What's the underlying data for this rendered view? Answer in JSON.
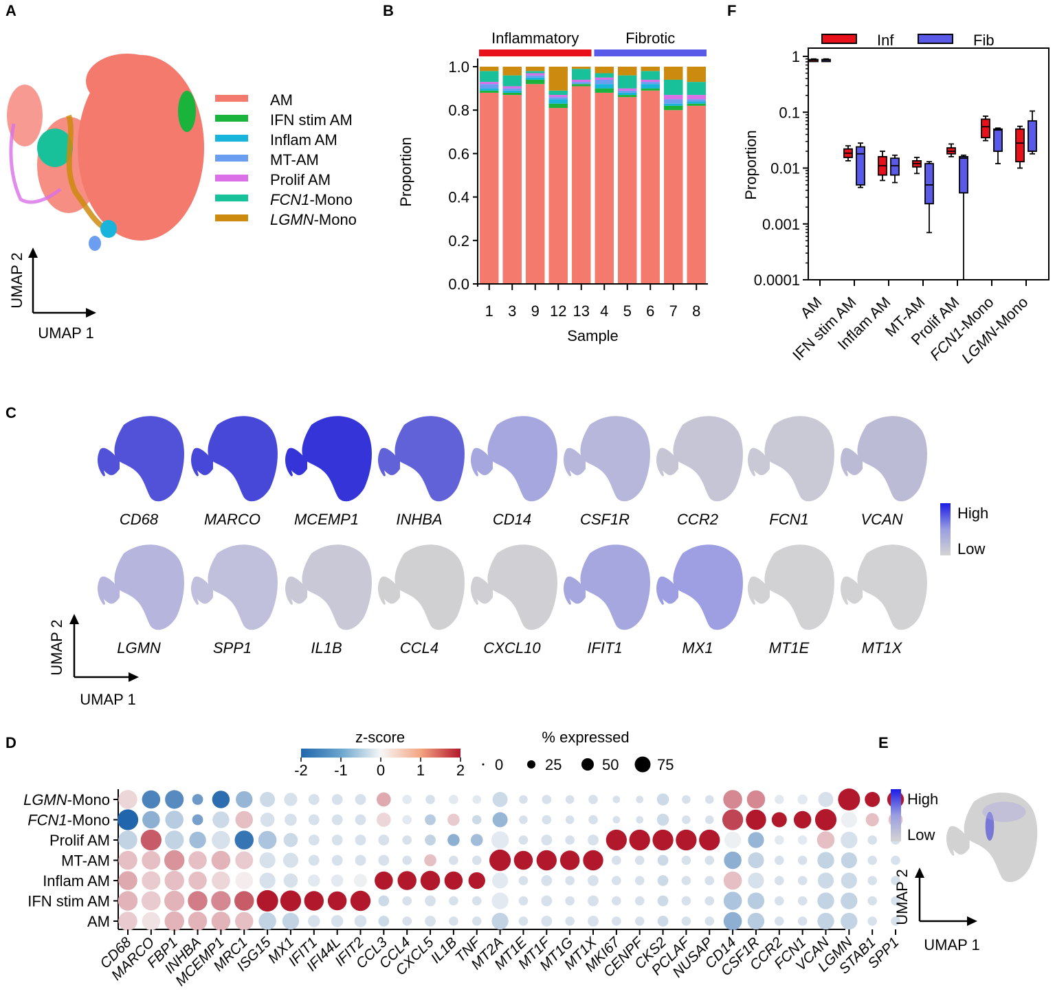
{
  "colors": {
    "AM": "#f47a6e",
    "IFN stim AM": "#1ab33c",
    "Inflam AM": "#18b4dc",
    "MT-AM": "#6b9ef0",
    "Prolif AM": "#da6fe8",
    "FCN1-Mono": "#18c19a",
    "LGMN-Mono": "#cc8b0e",
    "inf": "#e8111b",
    "fib": "#5a5ae8",
    "high": "#1c1ce6",
    "low": "#d4d4d4"
  },
  "panel_labels": {
    "a": "A",
    "b": "B",
    "c": "C",
    "d": "D",
    "e": "E",
    "f": "F"
  },
  "umap": {
    "axis1": "UMAP 1",
    "axis2": "UMAP 2"
  },
  "panelA": {
    "legend": [
      {
        "label": "AM",
        "key": "AM"
      },
      {
        "label": "IFN stim AM",
        "key": "IFN stim AM"
      },
      {
        "label": "Inflam AM",
        "key": "Inflam AM"
      },
      {
        "label": "MT-AM",
        "key": "MT-AM"
      },
      {
        "label": "Prolif AM",
        "key": "Prolif AM"
      },
      {
        "italic": "FCN1",
        "rest": "-Mono",
        "key": "FCN1-Mono"
      },
      {
        "italic": "LGMN",
        "rest": "-Mono",
        "key": "LGMN-Mono"
      }
    ]
  },
  "chart_data": [
    {
      "panel": "B",
      "type": "bar",
      "stacked": true,
      "xlabel": "Sample",
      "ylabel": "Proportion",
      "ylim": [
        0,
        1
      ],
      "yticks": [
        "0.0",
        "0.2",
        "0.4",
        "0.6",
        "0.8",
        "1.0"
      ],
      "groups": [
        {
          "label": "Inflammatory",
          "color": "#e8111b",
          "from": 0,
          "to": 4
        },
        {
          "label": "Fibrotic",
          "color": "#5a5ae8",
          "from": 5,
          "to": 9
        }
      ],
      "categories": [
        "1",
        "3",
        "9",
        "12",
        "13",
        "4",
        "5",
        "6",
        "7",
        "8"
      ],
      "series": [
        {
          "name": "AM",
          "values": [
            0.88,
            0.87,
            0.92,
            0.81,
            0.91,
            0.88,
            0.86,
            0.89,
            0.8,
            0.82
          ]
        },
        {
          "name": "IFN stim AM",
          "values": [
            0.01,
            0.01,
            0.02,
            0.02,
            0.01,
            0.02,
            0.01,
            0.01,
            0.02,
            0.01
          ]
        },
        {
          "name": "Inflam AM",
          "values": [
            0.01,
            0.01,
            0.01,
            0.02,
            0.0,
            0.02,
            0.01,
            0.02,
            0.01,
            0.01
          ]
        },
        {
          "name": "MT-AM",
          "values": [
            0.02,
            0.01,
            0.01,
            0.01,
            0.01,
            0.02,
            0.01,
            0.01,
            0.02,
            0.01
          ]
        },
        {
          "name": "Prolif AM",
          "values": [
            0.01,
            0.01,
            0.01,
            0.01,
            0.01,
            0.01,
            0.01,
            0.01,
            0.02,
            0.02
          ]
        },
        {
          "name": "FCN1-Mono",
          "values": [
            0.05,
            0.05,
            0.01,
            0.02,
            0.05,
            0.02,
            0.06,
            0.04,
            0.07,
            0.06
          ]
        },
        {
          "name": "LGMN-Mono",
          "values": [
            0.02,
            0.04,
            0.02,
            0.11,
            0.01,
            0.03,
            0.04,
            0.02,
            0.06,
            0.07
          ]
        }
      ]
    },
    {
      "panel": "F",
      "type": "box",
      "yscale": "log",
      "ylabel": "Proportion",
      "ylim": [
        0.0001,
        1
      ],
      "yticks": [
        "0.0001",
        "0.001",
        "0.01",
        "0.1",
        "1"
      ],
      "legend": [
        {
          "label": "Inf",
          "color": "#e8111b"
        },
        {
          "label": "Fib",
          "color": "#5a5ae8"
        }
      ],
      "categories": [
        {
          "label": "AM"
        },
        {
          "label": "IFN stim AM"
        },
        {
          "label": "Inflam AM"
        },
        {
          "label": "MT-AM"
        },
        {
          "label": "Prolif AM"
        },
        {
          "italic": "FCN1",
          "rest": "-Mono"
        },
        {
          "italic": "LGMN",
          "rest": "-Mono"
        }
      ],
      "boxes": [
        {
          "group": "Inf",
          "cat": 0,
          "min": 0.82,
          "q1": 0.84,
          "median": 0.86,
          "q3": 0.88,
          "max": 0.9
        },
        {
          "group": "Fib",
          "cat": 0,
          "min": 0.82,
          "q1": 0.84,
          "median": 0.86,
          "q3": 0.88,
          "max": 0.9
        },
        {
          "group": "Inf",
          "cat": 1,
          "min": 0.0135,
          "q1": 0.0155,
          "median": 0.0185,
          "q3": 0.022,
          "max": 0.025
        },
        {
          "group": "Fib",
          "cat": 1,
          "min": 0.0045,
          "q1": 0.005,
          "median": 0.018,
          "q3": 0.024,
          "max": 0.028
        },
        {
          "group": "Inf",
          "cat": 2,
          "min": 0.006,
          "q1": 0.0075,
          "median": 0.011,
          "q3": 0.016,
          "max": 0.02
        },
        {
          "group": "Fib",
          "cat": 2,
          "min": 0.0055,
          "q1": 0.0075,
          "median": 0.011,
          "q3": 0.015,
          "max": 0.017
        },
        {
          "group": "Inf",
          "cat": 3,
          "min": 0.008,
          "q1": 0.0105,
          "median": 0.012,
          "q3": 0.0135,
          "max": 0.0155
        },
        {
          "group": "Fib",
          "cat": 3,
          "min": 0.0007,
          "q1": 0.0023,
          "median": 0.005,
          "q3": 0.012,
          "max": 0.013
        },
        {
          "group": "Inf",
          "cat": 4,
          "min": 0.016,
          "q1": 0.018,
          "median": 0.02,
          "q3": 0.023,
          "max": 0.027
        },
        {
          "group": "Fib",
          "cat": 4,
          "min": 0.0001,
          "q1": 0.0036,
          "median": 0.015,
          "q3": 0.016,
          "max": 0.017
        },
        {
          "group": "Inf",
          "cat": 5,
          "min": 0.031,
          "q1": 0.035,
          "median": 0.055,
          "q3": 0.075,
          "max": 0.085
        },
        {
          "group": "Fib",
          "cat": 5,
          "min": 0.012,
          "q1": 0.02,
          "median": 0.048,
          "q3": 0.05,
          "max": 0.052
        },
        {
          "group": "Inf",
          "cat": 6,
          "min": 0.01,
          "q1": 0.013,
          "median": 0.028,
          "q3": 0.05,
          "max": 0.056
        },
        {
          "group": "Fib",
          "cat": 6,
          "min": 0.018,
          "q1": 0.02,
          "median": 0.02,
          "q3": 0.07,
          "max": 0.105
        }
      ]
    },
    {
      "panel": "D",
      "type": "dotplot",
      "legend": {
        "colorbar_title": "z-score",
        "colorbar_ticks": [
          "-2",
          "-1",
          "0",
          "1",
          "2"
        ],
        "size_title": "% expressed",
        "size_ticks": [
          "0",
          "25",
          "50",
          "75"
        ]
      },
      "rows": [
        {
          "italic": "LGMN",
          "rest": "-Mono"
        },
        {
          "italic": "FCN1",
          "rest": "-Mono"
        },
        {
          "label": "Prolif AM"
        },
        {
          "label": "MT-AM"
        },
        {
          "label": "Inflam AM"
        },
        {
          "label": "IFN stim AM"
        },
        {
          "label": "AM"
        }
      ],
      "genes": [
        "CD68",
        "MARCO",
        "FBP1",
        "INHBA",
        "MCEMP1",
        "MRC1",
        "ISG15",
        "MX1",
        "IFIT1",
        "IFI44L",
        "IFIT2",
        "CCL3",
        "CCL4",
        "CXCL5",
        "IL1B",
        "TNF",
        "MT2A",
        "MT1E",
        "MT1F",
        "MT1G",
        "MT1X",
        "MKI67",
        "CENPF",
        "CKS2",
        "PCLAF",
        "NUSAP",
        "CD14",
        "CSF1R",
        "CCR2",
        "FCN1",
        "VCAN",
        "LGMN",
        "STAB1",
        "SPP1"
      ],
      "z": [
        [
          0.3,
          -1.6,
          -1.5,
          -1.3,
          -1.9,
          -0.9,
          -0.4,
          -0.3,
          -0.3,
          -0.3,
          -0.3,
          0.7,
          -0.2,
          -0.3,
          -0.2,
          -0.2,
          -0.4,
          -0.3,
          -0.3,
          -0.3,
          -0.3,
          -0.3,
          -0.3,
          -0.4,
          -0.3,
          -0.3,
          1.0,
          1.0,
          -0.2,
          -0.2,
          -0.3,
          2.0,
          2.0,
          2.0
        ],
        [
          -2.0,
          -1.0,
          -0.6,
          -1.2,
          -0.4,
          0.5,
          -0.3,
          -0.3,
          -0.3,
          -0.3,
          -0.3,
          0.3,
          -0.2,
          -0.6,
          0.4,
          -0.4,
          -0.9,
          -0.3,
          -0.3,
          -0.3,
          -0.3,
          -0.3,
          -0.3,
          -0.4,
          -0.3,
          -0.3,
          1.6,
          2.0,
          2.0,
          2.0,
          2.0,
          -0.1,
          0.5,
          0.5
        ],
        [
          -0.5,
          1.4,
          -0.5,
          -0.8,
          -0.3,
          -1.8,
          -0.7,
          -0.4,
          -0.3,
          -0.3,
          -0.3,
          -0.3,
          -0.3,
          -0.5,
          -1.0,
          -0.8,
          -0.2,
          -0.3,
          -0.3,
          -0.3,
          -0.3,
          2.0,
          2.0,
          2.0,
          2.0,
          2.0,
          -0.1,
          -0.9,
          -0.2,
          -0.2,
          0.5,
          -0.3,
          -0.3,
          -0.3
        ],
        [
          0.5,
          0.5,
          0.9,
          0.5,
          0.6,
          0.4,
          -0.3,
          -0.3,
          -0.3,
          -0.3,
          -0.3,
          -0.3,
          -0.3,
          0.5,
          -0.3,
          -0.3,
          2.0,
          2.0,
          2.0,
          2.0,
          2.0,
          -0.3,
          -0.3,
          -0.4,
          -0.3,
          -0.3,
          -1.0,
          -0.5,
          -0.3,
          -0.3,
          -0.5,
          -0.5,
          -0.3,
          -0.3
        ],
        [
          0.7,
          0.4,
          0.5,
          0.5,
          0.3,
          0.1,
          -0.3,
          -0.3,
          -0.2,
          -0.2,
          -0.1,
          2.0,
          2.0,
          2.0,
          2.0,
          2.0,
          -0.2,
          -0.3,
          -0.3,
          -0.3,
          -0.3,
          -0.3,
          -0.3,
          -0.4,
          -0.3,
          -0.3,
          0.5,
          -0.3,
          -0.3,
          -0.3,
          -0.4,
          -0.4,
          -0.3,
          -0.3
        ],
        [
          0.6,
          0.4,
          0.6,
          1.1,
          1.0,
          1.4,
          2.0,
          2.0,
          2.0,
          2.0,
          2.0,
          -0.4,
          -0.3,
          -0.3,
          -0.3,
          -0.3,
          -0.2,
          -0.3,
          -0.3,
          -0.3,
          -0.3,
          -0.3,
          -0.3,
          -0.4,
          -0.3,
          -0.3,
          -0.7,
          -0.6,
          -0.3,
          -0.3,
          -0.5,
          -0.5,
          -0.3,
          -0.3
        ],
        [
          0.4,
          0.2,
          0.6,
          0.6,
          0.6,
          0.5,
          -0.5,
          -0.5,
          -0.3,
          -0.3,
          -0.3,
          -0.4,
          -0.3,
          -0.3,
          -0.3,
          -0.3,
          -0.5,
          -0.3,
          -0.3,
          -0.3,
          -0.3,
          -0.3,
          -0.3,
          -0.4,
          -0.3,
          -0.3,
          -1.0,
          -0.6,
          -0.3,
          -0.3,
          -0.5,
          -0.5,
          -0.3,
          -0.3
        ]
      ],
      "pct": [
        [
          60,
          55,
          58,
          15,
          50,
          45,
          35,
          25,
          15,
          15,
          15,
          30,
          10,
          10,
          10,
          8,
          35,
          8,
          10,
          8,
          10,
          5,
          5,
          20,
          8,
          8,
          60,
          55,
          10,
          12,
          35,
          85,
          35,
          45
        ],
        [
          75,
          50,
          55,
          15,
          45,
          50,
          30,
          20,
          15,
          15,
          15,
          30,
          10,
          15,
          20,
          10,
          35,
          8,
          10,
          8,
          10,
          5,
          5,
          20,
          8,
          8,
          75,
          70,
          35,
          50,
          80,
          40,
          25,
          30
        ],
        [
          60,
          75,
          60,
          45,
          55,
          60,
          55,
          30,
          15,
          15,
          15,
          15,
          10,
          15,
          20,
          20,
          50,
          10,
          15,
          10,
          15,
          75,
          75,
          75,
          75,
          75,
          45,
          40,
          10,
          10,
          50,
          45,
          10,
          10
        ],
        [
          60,
          58,
          70,
          55,
          60,
          52,
          40,
          35,
          15,
          15,
          15,
          15,
          10,
          20,
          10,
          10,
          80,
          60,
          70,
          65,
          70,
          10,
          10,
          15,
          10,
          10,
          50,
          40,
          10,
          10,
          45,
          40,
          10,
          10
        ],
        [
          60,
          58,
          65,
          55,
          55,
          50,
          40,
          30,
          20,
          20,
          25,
          55,
          60,
          65,
          55,
          45,
          40,
          10,
          15,
          10,
          15,
          10,
          10,
          15,
          10,
          10,
          55,
          40,
          10,
          10,
          40,
          40,
          10,
          10
        ],
        [
          65,
          62,
          70,
          65,
          65,
          65,
          80,
          75,
          65,
          60,
          70,
          15,
          10,
          15,
          10,
          10,
          45,
          10,
          15,
          10,
          15,
          10,
          10,
          15,
          10,
          10,
          55,
          45,
          10,
          10,
          45,
          45,
          10,
          10
        ],
        [
          60,
          55,
          65,
          60,
          60,
          55,
          50,
          45,
          20,
          20,
          20,
          15,
          10,
          15,
          10,
          10,
          45,
          10,
          15,
          10,
          15,
          10,
          10,
          15,
          10,
          10,
          55,
          45,
          10,
          10,
          45,
          45,
          10,
          10
        ]
      ]
    }
  ],
  "panelC": {
    "colorbar": {
      "high": "High",
      "low": "Low"
    },
    "genes_row1": [
      "CD68",
      "MARCO",
      "MCEMP1",
      "INHBA",
      "CD14",
      "CSF1R",
      "CCR2",
      "FCN1",
      "VCAN"
    ],
    "genes_row2": [
      "LGMN",
      "SPP1",
      "IL1B",
      "CCL4",
      "CXCL10",
      "IFIT1",
      "MX1",
      "MT1E",
      "MT1X"
    ]
  },
  "panelE": {
    "colorbar": {
      "high": "High",
      "low": "Low"
    }
  }
}
